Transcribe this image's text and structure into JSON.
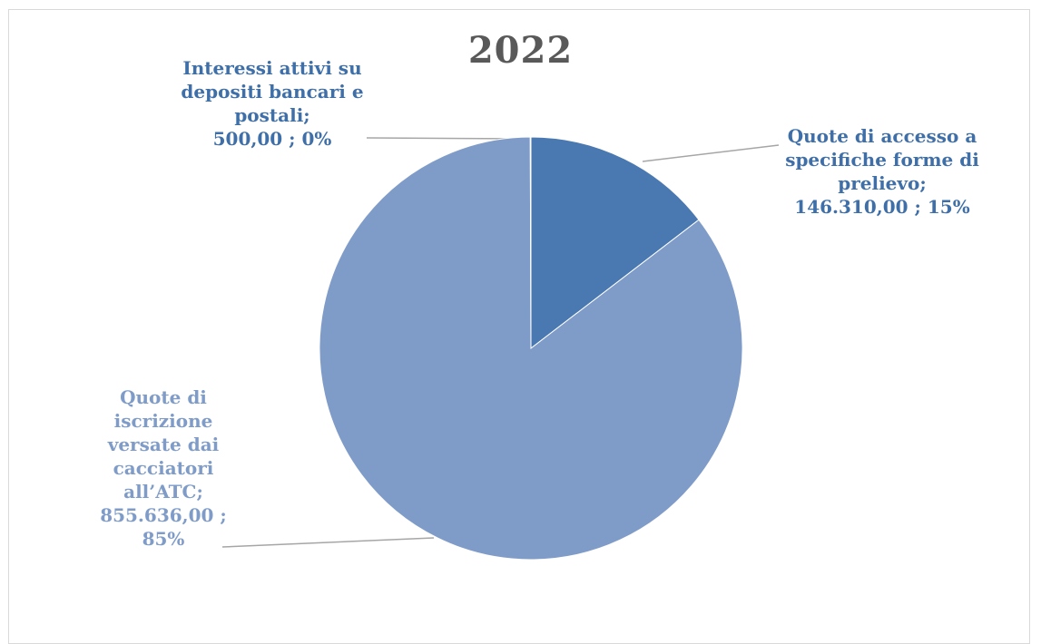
{
  "chart_data": {
    "type": "pie",
    "title": "2022",
    "categories": [
      "Quote di accesso a specifiche forme di prelievo",
      "Quote di iscrizione versate dai cacciatori all’ATC",
      "Interessi attivi su depositi bancari e postali"
    ],
    "values": [
      146310.0,
      855636.0,
      500.0
    ],
    "value_labels": [
      "146.310,00",
      "855.636,00",
      "500,00"
    ],
    "percent_labels": [
      "15%",
      "85%",
      "0%"
    ],
    "colors": [
      "#4a78b0",
      "#7f9cc9",
      "#5b86bc"
    ],
    "label_colors": [
      "#3f6fa8",
      "#7f9cc9",
      "#3f6fa8"
    ],
    "legend": "none"
  },
  "labels": {
    "accesso": {
      "name": "Quote di accesso a specifiche forme di prelievo;",
      "value": "146.310,00 ; 15%"
    },
    "iscrizione": {
      "name": "Quote di iscrizione versate dai cacciatori all’ATC;",
      "value": "855.636,00 ; 85%"
    },
    "interessi": {
      "name": "Interessi attivi su depositi bancari e postali;",
      "value": "500,00 ; 0%"
    }
  }
}
